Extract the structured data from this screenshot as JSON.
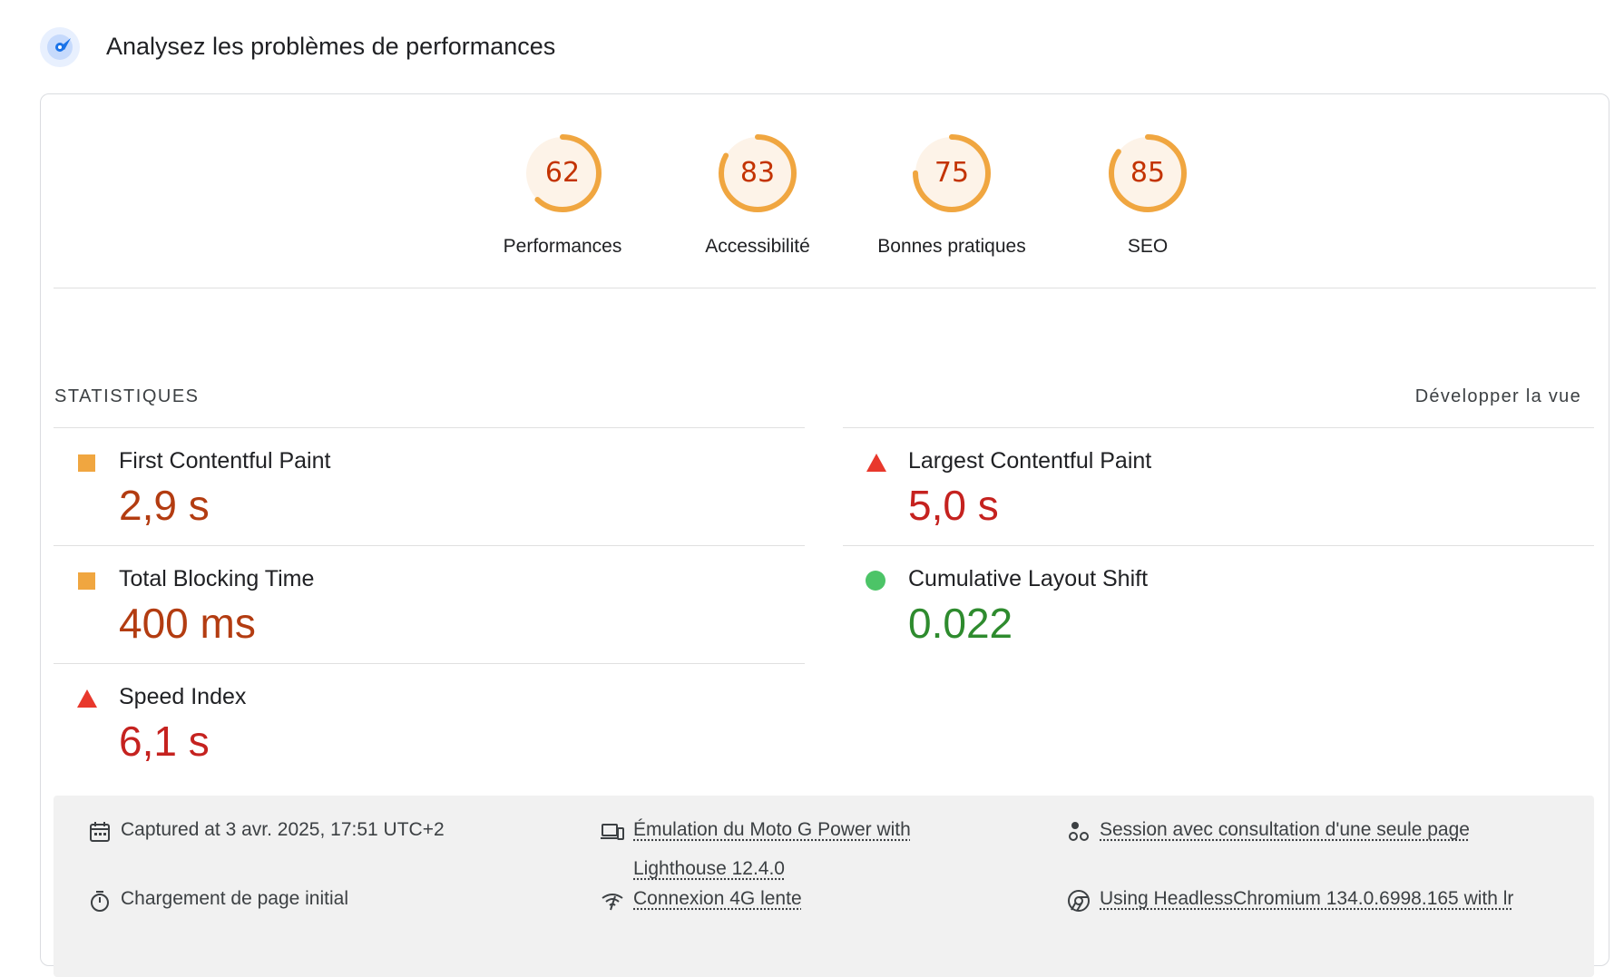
{
  "header": {
    "title": "Analysez les problèmes de performances",
    "icon": "lighthouse-icon",
    "accent": "#1a73e8"
  },
  "gauges": [
    {
      "label": "Performances",
      "score": "62",
      "value": 62
    },
    {
      "label": "Accessibilité",
      "score": "83",
      "value": 83
    },
    {
      "label": "Bonnes pratiques",
      "score": "75",
      "value": 75
    },
    {
      "label": "SEO",
      "score": "85",
      "value": 85
    }
  ],
  "colors": {
    "gauge_arc": "#f0a640",
    "gauge_fill": "#fdf3e8",
    "score_text": "#c33300",
    "average": "#f0a640",
    "poor": "#e8382c",
    "good": "#4cc467",
    "value_average": "#b33c11",
    "value_poor": "#c5221f",
    "value_good": "#2e8b2e"
  },
  "stats": {
    "heading": "STATISTIQUES",
    "expand_label": "Développer la vue",
    "metrics": [
      {
        "name": "First Contentful Paint",
        "value": "2,9 s",
        "status": "average"
      },
      {
        "name": "Largest Contentful Paint",
        "value": "5,0 s",
        "status": "poor"
      },
      {
        "name": "Total Blocking Time",
        "value": "400 ms",
        "status": "average"
      },
      {
        "name": "Cumulative Layout Shift",
        "value": "0.022",
        "status": "good"
      },
      {
        "name": "Speed Index",
        "value": "6,1 s",
        "status": "poor"
      }
    ]
  },
  "footer": {
    "captured": "Captured at 3 avr. 2025, 17:51 UTC+2",
    "emulation": "Émulation du Moto G Power with Lighthouse 12.4.0",
    "session": "Session avec consultation d'une seule page",
    "load": "Chargement de page initial",
    "network": "Connexion 4G lente",
    "browser": "Using HeadlessChromium 134.0.6998.165 with lr"
  }
}
